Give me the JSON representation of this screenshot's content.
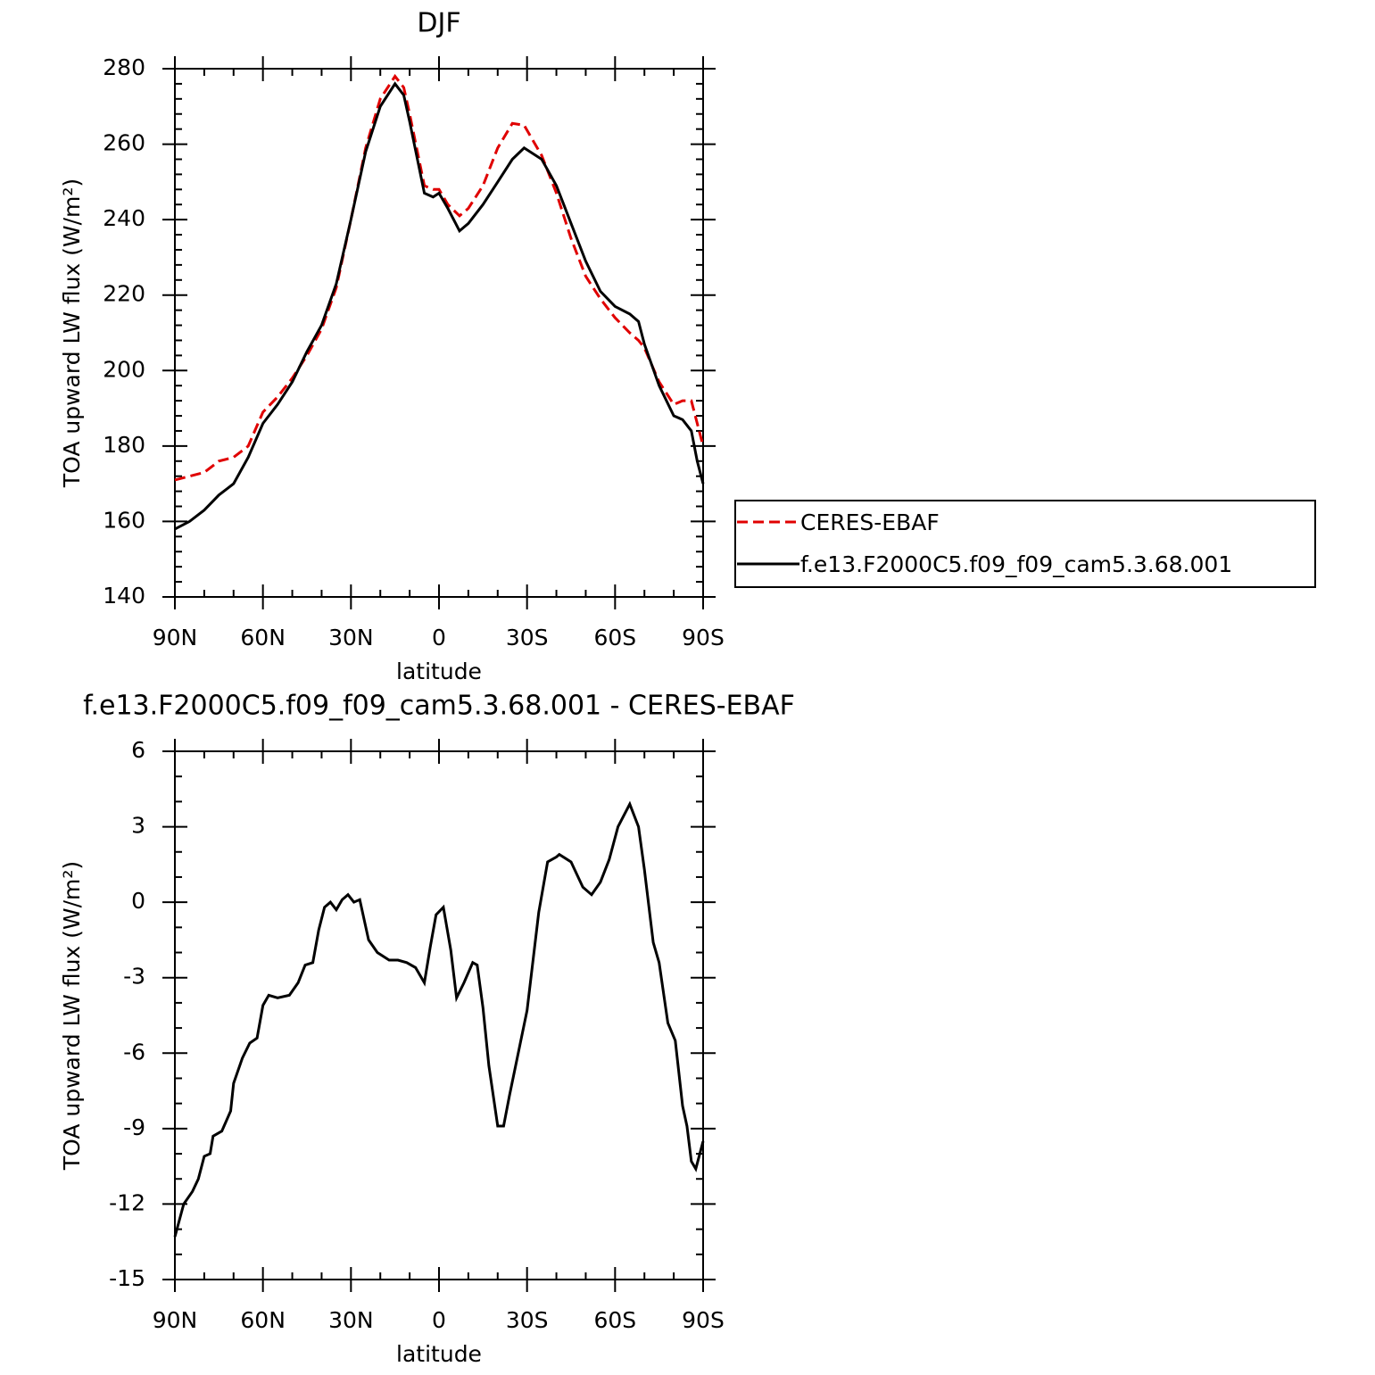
{
  "chart_data": [
    {
      "type": "line",
      "title": "DJF",
      "x_label": "latitude",
      "y_label": "TOA upward LW flux (W/m²)",
      "xlim": [
        90,
        -90
      ],
      "xticks": [
        {
          "value": 90,
          "label": "90N"
        },
        {
          "value": 60,
          "label": "60N"
        },
        {
          "value": 30,
          "label": "30N"
        },
        0,
        {
          "value": -30,
          "label": "30S"
        },
        {
          "value": -60,
          "label": "60S"
        },
        {
          "value": -90,
          "label": "90S"
        }
      ],
      "ylim": [
        140,
        280
      ],
      "yticks": [
        140,
        160,
        180,
        200,
        220,
        240,
        260,
        280
      ],
      "legend": "right",
      "x": [
        90,
        85,
        80,
        75,
        70,
        65,
        60,
        55,
        50,
        45,
        40,
        35,
        30,
        25,
        20,
        15,
        12,
        10,
        5,
        2,
        0,
        -3,
        -7,
        -10,
        -15,
        -20,
        -25,
        -29,
        -35,
        -40,
        -45,
        -50,
        -55,
        -60,
        -65,
        -68,
        -70,
        -75,
        -80,
        -83,
        -86,
        -88,
        -90
      ],
      "series": [
        {
          "name": "CERES-EBAF",
          "color": "#e00000",
          "line_style": "dashed",
          "values": [
            171,
            172,
            173,
            176,
            177,
            180,
            189,
            193,
            198,
            204,
            211,
            222,
            240,
            259,
            272,
            278,
            275,
            268,
            249,
            248,
            248,
            244,
            241,
            243,
            249,
            259,
            265.5,
            265,
            257,
            247,
            235,
            225,
            219,
            214,
            210,
            208,
            206,
            197,
            191,
            192,
            192,
            186,
            180
          ]
        },
        {
          "name": "f.e13.F2000C5.f09_f09_cam5.3.68.001",
          "color": "#000000",
          "line_style": "solid",
          "values": [
            158,
            160,
            163,
            167,
            170,
            177,
            186,
            191,
            197,
            205,
            212,
            223,
            240,
            258,
            270,
            276,
            273,
            266,
            247,
            246,
            247,
            243,
            237,
            239,
            244,
            250,
            256,
            259,
            256,
            249,
            239,
            229,
            221,
            217,
            215,
            213,
            207,
            196,
            188,
            187,
            184,
            176,
            170
          ]
        }
      ]
    },
    {
      "type": "line",
      "title": "f.e13.F2000C5.f09_f09_cam5.3.68.001 - CERES-EBAF",
      "x_label": "latitude",
      "y_label": "TOA upward LW flux (W/m²)",
      "xlim": [
        90,
        -90
      ],
      "xticks": [
        {
          "value": 90,
          "label": "90N"
        },
        {
          "value": 60,
          "label": "60N"
        },
        {
          "value": 30,
          "label": "30N"
        },
        0,
        {
          "value": -30,
          "label": "30S"
        },
        {
          "value": -60,
          "label": "60S"
        },
        {
          "value": -90,
          "label": "90S"
        }
      ],
      "ylim": [
        -15,
        6
      ],
      "yticks": [
        -15,
        -12,
        -9,
        -6,
        -3,
        0,
        3,
        6
      ],
      "x": [
        90,
        87,
        84,
        82,
        80,
        78,
        77,
        74,
        71,
        70,
        67,
        64.5,
        62,
        60,
        58,
        55,
        51,
        48,
        45.6,
        43,
        41,
        39,
        37,
        35,
        33,
        31,
        29,
        27,
        24,
        21,
        17,
        14,
        11,
        8,
        5,
        3,
        1,
        -1.5,
        -4,
        -6,
        -8.5,
        -11.5,
        -13,
        -15,
        -17,
        -20,
        -22,
        -24,
        -30,
        -34,
        -37,
        -40,
        -41,
        -45,
        -49,
        -52,
        -55,
        -58,
        -61,
        -65,
        -68,
        -70,
        -73,
        -75,
        -78,
        -80.5,
        -83,
        -84.5,
        -86,
        -87.5,
        -90
      ],
      "series": [
        {
          "color": "#000000",
          "line_style": "solid",
          "values": [
            -13.3,
            -12.0,
            -11.5,
            -11,
            -10.1,
            -10,
            -9.3,
            -9.1,
            -8.3,
            -7.2,
            -6.2,
            -5.6,
            -5.4,
            -4.1,
            -3.7,
            -3.8,
            -3.7,
            -3.2,
            -2.5,
            -2.4,
            -1.1,
            -0.2,
            0,
            -0.3,
            0.1,
            0.3,
            0,
            0.1,
            -1.5,
            -2,
            -2.3,
            -2.3,
            -2.4,
            -2.6,
            -3.2,
            -1.8,
            -0.5,
            -0.2,
            -1.9,
            -3.8,
            -3.2,
            -2.4,
            -2.5,
            -4.2,
            -6.5,
            -8.9,
            -8.9,
            -7.7,
            -4.3,
            -0.4,
            1.6,
            1.8,
            1.9,
            1.6,
            0.6,
            0.3,
            0.8,
            1.7,
            3,
            3.9,
            3,
            1.3,
            -1.6,
            -2.4,
            -4.8,
            -5.5,
            -8.1,
            -8.9,
            -10.3,
            -10.6,
            -9.5
          ]
        }
      ]
    }
  ]
}
